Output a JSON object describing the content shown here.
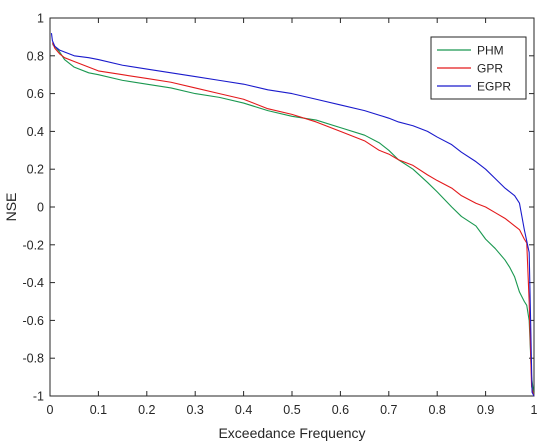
{
  "chart_data": {
    "type": "line",
    "xlabel": "Exceedance Frequency",
    "ylabel": "NSE",
    "xlim": [
      0,
      1
    ],
    "ylim": [
      -1,
      1
    ],
    "x_ticks": [
      0,
      0.1,
      0.2,
      0.3,
      0.4,
      0.5,
      0.6,
      0.7,
      0.8,
      0.9,
      1
    ],
    "x_tick_labels": [
      "0",
      "0.1",
      "0.2",
      "0.3",
      "0.4",
      "0.5",
      "0.6",
      "0.7",
      "0.8",
      "0.9",
      "1"
    ],
    "y_ticks": [
      -1,
      -0.8,
      -0.6,
      -0.4,
      -0.2,
      0,
      0.2,
      0.4,
      0.6,
      0.8,
      1
    ],
    "y_tick_labels": [
      "-1",
      "-0.8",
      "-0.6",
      "-0.4",
      "-0.2",
      "0",
      "0.2",
      "0.4",
      "0.6",
      "0.8",
      "1"
    ],
    "grid": false,
    "legend_position": "top-right",
    "series": [
      {
        "name": "PHM",
        "color": "#1a9850",
        "x": [
          0.005,
          0.01,
          0.02,
          0.03,
          0.05,
          0.08,
          0.1,
          0.15,
          0.2,
          0.25,
          0.3,
          0.35,
          0.4,
          0.45,
          0.5,
          0.55,
          0.6,
          0.65,
          0.68,
          0.7,
          0.72,
          0.75,
          0.78,
          0.8,
          0.83,
          0.85,
          0.88,
          0.9,
          0.92,
          0.94,
          0.95,
          0.96,
          0.97,
          0.98,
          0.985,
          0.99,
          0.995,
          1.0
        ],
        "y": [
          0.86,
          0.85,
          0.82,
          0.78,
          0.74,
          0.71,
          0.7,
          0.67,
          0.65,
          0.63,
          0.6,
          0.58,
          0.55,
          0.51,
          0.48,
          0.46,
          0.42,
          0.38,
          0.34,
          0.3,
          0.25,
          0.2,
          0.13,
          0.08,
          0.0,
          -0.05,
          -0.1,
          -0.17,
          -0.22,
          -0.28,
          -0.32,
          -0.37,
          -0.45,
          -0.5,
          -0.52,
          -0.6,
          -0.9,
          -1.0
        ]
      },
      {
        "name": "GPR",
        "color": "#e31a1c",
        "x": [
          0.005,
          0.01,
          0.02,
          0.03,
          0.05,
          0.08,
          0.1,
          0.15,
          0.2,
          0.25,
          0.3,
          0.35,
          0.4,
          0.45,
          0.5,
          0.55,
          0.6,
          0.65,
          0.68,
          0.7,
          0.72,
          0.75,
          0.78,
          0.8,
          0.83,
          0.85,
          0.88,
          0.9,
          0.92,
          0.94,
          0.96,
          0.97,
          0.98,
          0.985,
          0.99,
          0.995,
          1.0
        ],
        "y": [
          0.87,
          0.84,
          0.81,
          0.79,
          0.77,
          0.74,
          0.72,
          0.7,
          0.68,
          0.66,
          0.63,
          0.6,
          0.57,
          0.52,
          0.49,
          0.45,
          0.4,
          0.35,
          0.3,
          0.28,
          0.25,
          0.22,
          0.17,
          0.14,
          0.1,
          0.06,
          0.02,
          0.0,
          -0.03,
          -0.06,
          -0.1,
          -0.12,
          -0.17,
          -0.19,
          -0.5,
          -0.95,
          -1.0
        ]
      },
      {
        "name": "EGPR",
        "color": "#1a1acc",
        "x": [
          0.003,
          0.005,
          0.01,
          0.02,
          0.03,
          0.05,
          0.08,
          0.1,
          0.15,
          0.2,
          0.25,
          0.3,
          0.35,
          0.4,
          0.45,
          0.5,
          0.55,
          0.6,
          0.65,
          0.7,
          0.72,
          0.75,
          0.78,
          0.8,
          0.83,
          0.85,
          0.88,
          0.9,
          0.92,
          0.94,
          0.96,
          0.97,
          0.975,
          0.98,
          0.985,
          0.99,
          0.993,
          0.996,
          1.0
        ],
        "y": [
          0.92,
          0.88,
          0.85,
          0.83,
          0.82,
          0.8,
          0.79,
          0.78,
          0.75,
          0.73,
          0.71,
          0.69,
          0.67,
          0.65,
          0.62,
          0.6,
          0.57,
          0.54,
          0.51,
          0.47,
          0.45,
          0.43,
          0.4,
          0.37,
          0.33,
          0.29,
          0.24,
          0.2,
          0.15,
          0.1,
          0.06,
          0.02,
          -0.05,
          -0.12,
          -0.18,
          -0.24,
          -0.6,
          -0.98,
          -1.0
        ]
      }
    ]
  }
}
